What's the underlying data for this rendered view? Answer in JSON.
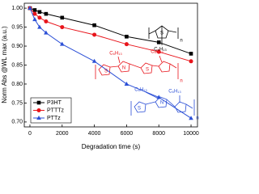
{
  "chart_data": {
    "type": "line",
    "x_label": "Degradation time (s)",
    "y_label": "Norm Abs @WL max (a.u.)",
    "x": [
      0,
      300,
      600,
      1000,
      2000,
      4000,
      6000,
      8000,
      10000
    ],
    "series": [
      {
        "name": "P3HT",
        "color": "#000000",
        "marker": "square",
        "values": [
          1.0,
          0.995,
          0.99,
          0.985,
          0.975,
          0.955,
          0.925,
          0.91,
          0.88
        ]
      },
      {
        "name": "PTTTz",
        "color": "#e8141b",
        "marker": "circle",
        "values": [
          1.0,
          0.985,
          0.975,
          0.965,
          0.95,
          0.93,
          0.905,
          0.885,
          0.86
        ]
      },
      {
        "name": "PTTz",
        "color": "#2b4fd6",
        "marker": "triangle",
        "values": [
          1.0,
          0.97,
          0.95,
          0.935,
          0.905,
          0.86,
          0.8,
          0.765,
          0.71
        ]
      }
    ],
    "xlim": [
      -350,
      10400
    ],
    "ylim": [
      0.687,
      1.013
    ],
    "xticks": [
      0,
      2000,
      4000,
      6000,
      8000,
      10000
    ],
    "yticks": [
      {
        "value": 0.7,
        "label": "0.70"
      },
      {
        "value": 0.75,
        "label": "0.75"
      },
      {
        "value": 0.8,
        "label": "0.80"
      },
      {
        "value": 0.85,
        "label": "0.85"
      },
      {
        "value": 0.9,
        "label": "0.90"
      },
      {
        "value": 0.95,
        "label": "0.95"
      },
      {
        "value": 1.0,
        "label": "1.00"
      }
    ],
    "legend": "lower left",
    "annotations": [
      {
        "text": "S",
        "color": "#000000"
      },
      {
        "text": "n",
        "color": "#000000"
      },
      {
        "text": "C₆H₁₃",
        "color": "#000000"
      },
      {
        "text": "C₆H₁₃",
        "color": "#e8141b"
      },
      {
        "text": "C₆H₁₃",
        "color": "#e8141b"
      },
      {
        "text": "S",
        "color": "#e8141b"
      },
      {
        "text": "N",
        "color": "#e8141b"
      },
      {
        "text": "S",
        "color": "#e8141b"
      },
      {
        "text": "n",
        "color": "#e8141b"
      },
      {
        "text": "C₆H₁₃",
        "color": "#2b4fd6"
      },
      {
        "text": "C₆H₁₃",
        "color": "#2b4fd6"
      },
      {
        "text": "S",
        "color": "#2b4fd6"
      },
      {
        "text": "N",
        "color": "#2b4fd6"
      },
      {
        "text": "n",
        "color": "#2b4fd6"
      }
    ]
  }
}
